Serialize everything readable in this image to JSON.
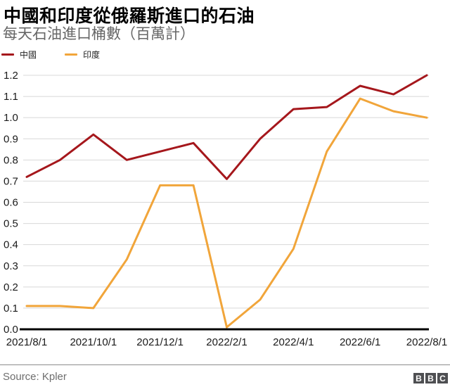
{
  "header": {
    "title": "中國和印度從俄羅斯進口的石油",
    "subtitle": "每天石油進口桶數（百萬計）"
  },
  "legend": [
    {
      "label": "中國",
      "color": "#a5171c"
    },
    {
      "label": "印度",
      "color": "#f1a53a"
    }
  ],
  "chart_data": {
    "type": "line",
    "x": [
      "2021/8/1",
      "2021/9/1",
      "2021/10/1",
      "2021/11/1",
      "2021/12/1",
      "2022/1/1",
      "2022/2/1",
      "2022/3/1",
      "2022/4/1",
      "2022/5/1",
      "2022/6/1",
      "2022/7/1",
      "2022/8/1"
    ],
    "x_tick_labels": [
      "2021/8/1",
      "2021/10/1",
      "2021/12/1",
      "2022/2/1",
      "2022/4/1",
      "2022/6/1",
      "2022/8/1"
    ],
    "x_tick_indices": [
      0,
      2,
      4,
      6,
      8,
      10,
      12
    ],
    "series": [
      {
        "name": "中國",
        "color": "#a5171c",
        "values": [
          0.72,
          0.8,
          0.92,
          0.8,
          0.84,
          0.88,
          0.71,
          0.9,
          1.04,
          1.05,
          1.15,
          1.11,
          1.2
        ]
      },
      {
        "name": "印度",
        "color": "#f1a53a",
        "values": [
          0.11,
          0.11,
          0.1,
          0.33,
          0.68,
          0.68,
          0.01,
          0.14,
          0.38,
          0.84,
          1.09,
          1.03,
          1.0
        ]
      }
    ],
    "ylim": [
      0,
      1.2
    ],
    "y_tick_labels": [
      "0.0",
      "0.1",
      "0.2",
      "0.3",
      "0.4",
      "0.5",
      "0.6",
      "0.7",
      "0.8",
      "0.9",
      "1.0",
      "1.1",
      "1.2"
    ],
    "grid": "horizontal",
    "legend_position": "top-left",
    "title": "中國和印度從俄羅斯進口的石油",
    "ylabel": "",
    "xlabel": ""
  },
  "styles": {
    "gridline_color": "#d8d8d8",
    "axis_color": "#000000",
    "tick_label_color": "#1a1a1a"
  },
  "footer": {
    "source": "Source: Kpler",
    "bbc_logo": [
      "B",
      "B",
      "C"
    ]
  }
}
